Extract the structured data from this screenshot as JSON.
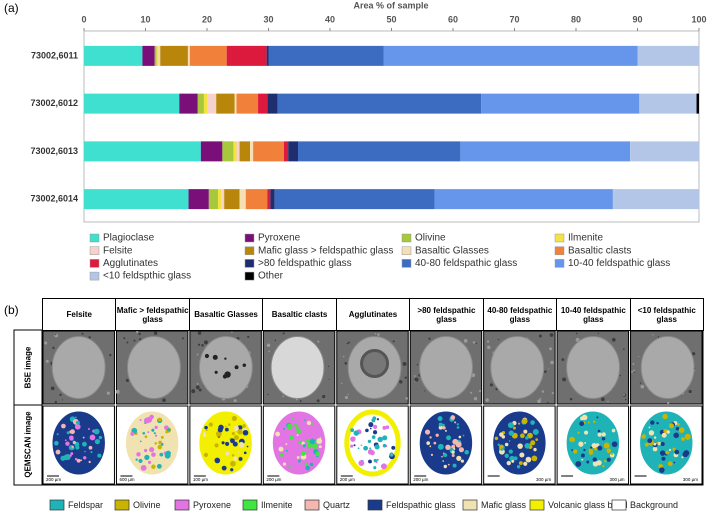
{
  "chart_data": {
    "type": "stacked_barh",
    "panel_label": "(a)",
    "x_label": "Area % of sample",
    "categories": [
      "73002,6011",
      "73002,6012",
      "73002,6013",
      "73002,6014"
    ],
    "xlim": [
      0,
      100
    ],
    "xticks": [
      0,
      10,
      20,
      30,
      40,
      50,
      60,
      70,
      80,
      90,
      100
    ],
    "series": [
      {
        "name": "Plagioclase",
        "color": "#3fe0d0",
        "values": [
          9.5,
          15.5,
          19,
          17
        ]
      },
      {
        "name": "Pyroxene",
        "color": "#7a0f7a",
        "values": [
          2,
          3,
          3.5,
          3.3
        ]
      },
      {
        "name": "Olivine",
        "color": "#a6c83a",
        "values": [
          0.3,
          1,
          1.8,
          1.5
        ]
      },
      {
        "name": "Ilmenite",
        "color": "#f4e33f",
        "values": [
          0.3,
          0.5,
          0.5,
          0.5
        ]
      },
      {
        "name": "Felsite",
        "color": "#f6d2cf",
        "values": [
          0.3,
          1.5,
          0.5,
          0.5
        ]
      },
      {
        "name": "Mafic glass > feldspathic glass",
        "color": "#b8860b",
        "values": [
          4.5,
          3,
          1.7,
          2.5
        ]
      },
      {
        "name": "Basaltic Glasses",
        "color": "#f5dfb5",
        "values": [
          0.3,
          0.3,
          0.5,
          1
        ]
      },
      {
        "name": "Basaltic clasts",
        "color": "#f0803a",
        "values": [
          6,
          3.5,
          5,
          3.5
        ]
      },
      {
        "name": "Agglutinates",
        "color": "#dc1a3e",
        "values": [
          6.5,
          1.5,
          0.7,
          0.5
        ]
      },
      {
        "name": ">80 feldspathic glass",
        "color": "#1f2e6e",
        "values": [
          0.3,
          1.7,
          1.6,
          0.7
        ]
      },
      {
        "name": "40-80 feldspathic glass",
        "color": "#3c6cc2",
        "values": [
          18.7,
          33.1,
          26.4,
          26
        ]
      },
      {
        "name": "10-40 feldspathic glass",
        "color": "#6696ec",
        "values": [
          41.3,
          25.7,
          27.6,
          29
        ]
      },
      {
        "name": "<10 feldspthic glass",
        "color": "#b3c6e8",
        "values": [
          10,
          9.3,
          11.2,
          14
        ]
      },
      {
        "name": "Other",
        "color": "#000000",
        "values": [
          0,
          0.4,
          0,
          0
        ]
      }
    ]
  },
  "figure_b": {
    "panel_label": "(b)",
    "columns": [
      "Felsite",
      "Mafic > feldspathic glass",
      "Basaltic Glasses",
      "Basaltic clasts",
      "Agglutinates",
      ">80 feldspathic glass",
      "40-80 feldspathic glass",
      "10-40 feldspathic glass",
      "<10 feldspathic glass"
    ],
    "row_labels": [
      "BSE image",
      "QEMSCAN image"
    ],
    "scale_labels": [
      "200 µm",
      "600 µm",
      "100 µm",
      "200 µm",
      "200 µm",
      "200 µm",
      "300 µm",
      "300 µm",
      "300 µm"
    ],
    "legend": [
      {
        "name": "Feldspar",
        "color": "#1fb3b8"
      },
      {
        "name": "Olivine",
        "color": "#c9b400"
      },
      {
        "name": "Pyroxene",
        "color": "#e374e3"
      },
      {
        "name": "Ilmenite",
        "color": "#3fe63f"
      },
      {
        "name": "Quartz",
        "color": "#f4b6ae"
      },
      {
        "name": "Feldspathic glass",
        "color": "#1a3a8c"
      },
      {
        "name": "Mafic glass",
        "color": "#f1e2b2"
      },
      {
        "name": "Volcanic glass bead",
        "color": "#f2f000"
      },
      {
        "name": "Background",
        "color": "#ffffff"
      }
    ]
  }
}
